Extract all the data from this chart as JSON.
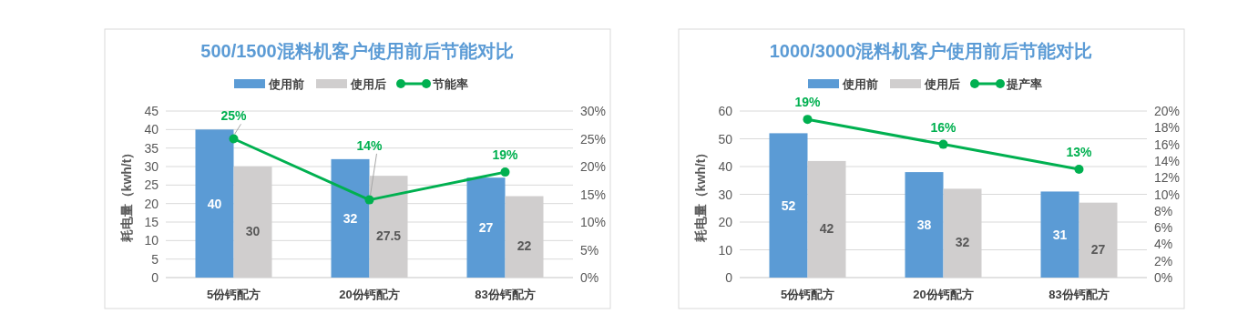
{
  "chart_data": [
    {
      "type": "bar",
      "title": "500/1500混料机客户使用前后节能对比",
      "ylabel": "耗电量（kwh/t）",
      "categories": [
        "5份钙配方",
        "20份钙配方",
        "83份钙配方"
      ],
      "series": [
        {
          "name": "使用前",
          "color": "#5b9bd5",
          "values": [
            40,
            32,
            27
          ]
        },
        {
          "name": "使用后",
          "color": "#d0cece",
          "values": [
            30,
            27.5,
            22
          ]
        },
        {
          "name": "节能率",
          "type": "line",
          "axis": "y2",
          "color": "#00b050",
          "values": [
            25,
            14,
            19
          ],
          "value_labels": [
            "25%",
            "14%",
            "19%"
          ]
        }
      ],
      "ylim": [
        0,
        45
      ],
      "yticks": [
        0,
        5,
        10,
        15,
        20,
        25,
        30,
        35,
        40,
        45
      ],
      "y2lim": [
        0,
        30
      ],
      "y2ticks": [
        {
          "value": 0,
          "label": "0%"
        },
        {
          "value": 5,
          "label": "5%"
        },
        {
          "value": 10,
          "label": "10%"
        },
        {
          "value": 15,
          "label": "15%"
        },
        {
          "value": 20,
          "label": "20%"
        },
        {
          "value": 25,
          "label": "25%"
        },
        {
          "value": 30,
          "label": "30%"
        }
      ],
      "grid": "y",
      "legend": "top",
      "marker": "circle",
      "data_labels": true
    },
    {
      "type": "bar",
      "title": "1000/3000混料机客户使用前后节能对比",
      "ylabel": "耗电量（kwh/t）",
      "categories": [
        "5份钙配方",
        "20份钙配方",
        "83份钙配方"
      ],
      "series": [
        {
          "name": "使用前",
          "color": "#5b9bd5",
          "values": [
            52,
            38,
            31
          ]
        },
        {
          "name": "使用后",
          "color": "#d0cece",
          "values": [
            42,
            32,
            27
          ]
        },
        {
          "name": "提产率",
          "type": "line",
          "axis": "y2",
          "color": "#00b050",
          "values": [
            19,
            16,
            13
          ],
          "value_labels": [
            "19%",
            "16%",
            "13%"
          ]
        }
      ],
      "ylim": [
        0,
        60
      ],
      "yticks": [
        0,
        10,
        20,
        30,
        40,
        50,
        60
      ],
      "y2lim": [
        0,
        20
      ],
      "y2ticks": [
        {
          "value": 0,
          "label": "0%"
        },
        {
          "value": 2,
          "label": "2%"
        },
        {
          "value": 4,
          "label": "4%"
        },
        {
          "value": 6,
          "label": "6%"
        },
        {
          "value": 8,
          "label": "8%"
        },
        {
          "value": 10,
          "label": "10%"
        },
        {
          "value": 12,
          "label": "12%"
        },
        {
          "value": 14,
          "label": "14%"
        },
        {
          "value": 16,
          "label": "16%"
        },
        {
          "value": 18,
          "label": "18%"
        },
        {
          "value": 20,
          "label": "20%"
        }
      ],
      "grid": "y",
      "legend": "top",
      "marker": "circle",
      "data_labels": true
    }
  ]
}
